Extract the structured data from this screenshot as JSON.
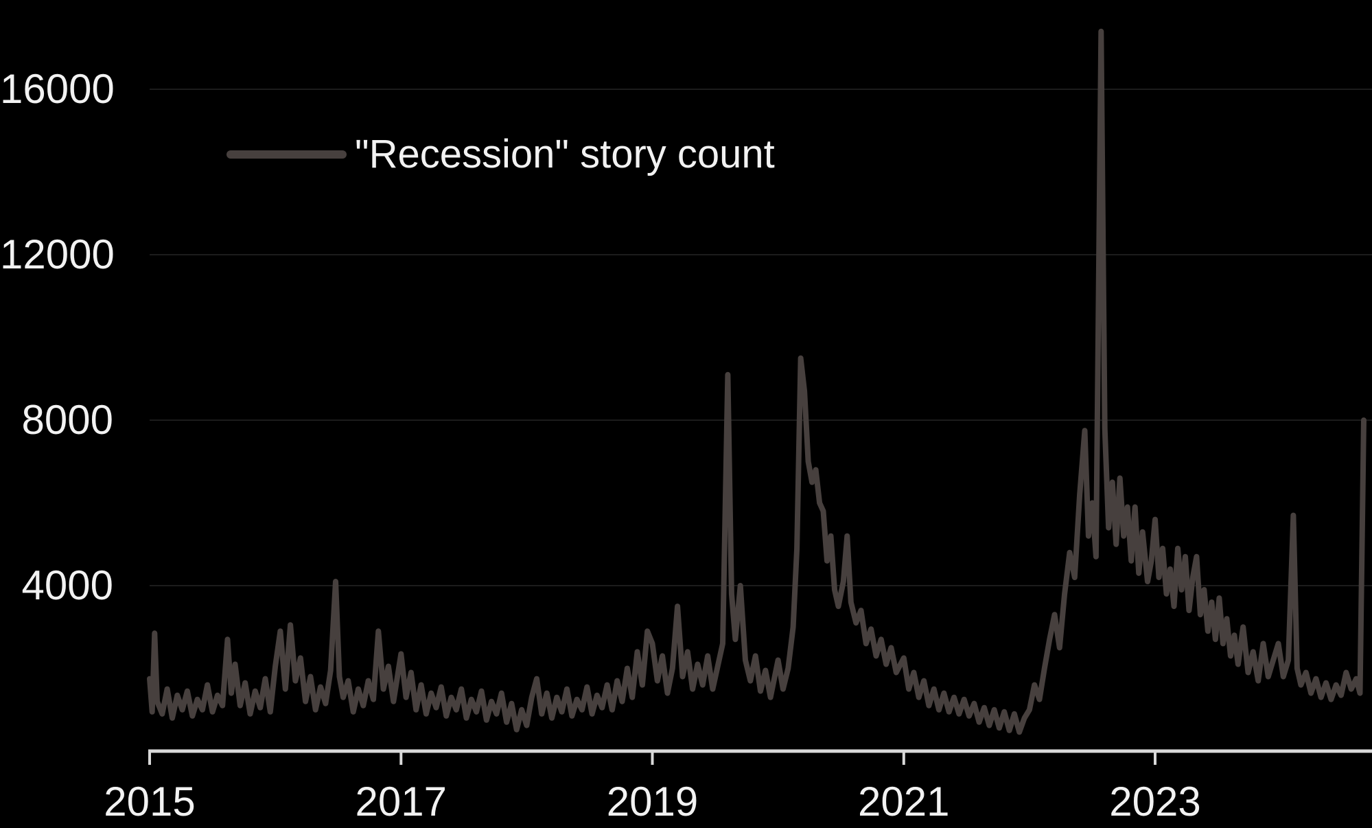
{
  "chart": {
    "legend_label": "\"Recession\" story count",
    "colors": {
      "background": "#000000",
      "series_line": "#47403e",
      "axis_line": "#d9d9d9",
      "gridline": "#1c1c1c",
      "label_text": "#f2f2f2"
    }
  },
  "chart_data": {
    "type": "line",
    "title": "",
    "xlabel": "",
    "ylabel": "",
    "legend": {
      "position": "top-left-inside",
      "entries": [
        "\"Recession\" story count"
      ]
    },
    "x_axis": {
      "unit": "year",
      "range": [
        2015,
        2024.73
      ],
      "ticks": [
        2015,
        2017,
        2019,
        2021,
        2023
      ],
      "tick_labels": [
        "2015",
        "2017",
        "2019",
        "2021",
        "2023"
      ]
    },
    "y_axis": {
      "range": [
        0,
        17600
      ],
      "ticks": [
        4000,
        8000,
        12000,
        16000
      ],
      "tick_labels": [
        "4000",
        "8000",
        "12000",
        "16000"
      ],
      "gridlines": true
    },
    "notable_peaks": [
      {
        "x": 2015.04,
        "y": 2850
      },
      {
        "x": 2016.12,
        "y": 3050
      },
      {
        "x": 2016.48,
        "y": 4100
      },
      {
        "x": 2018.96,
        "y": 2900
      },
      {
        "x": 2019.6,
        "y": 9100
      },
      {
        "x": 2020.18,
        "y": 9500
      },
      {
        "x": 2022.44,
        "y": 7750
      },
      {
        "x": 2022.57,
        "y": 17400
      },
      {
        "x": 2023.0,
        "y": 5600
      },
      {
        "x": 2024.1,
        "y": 5700
      },
      {
        "x": 2024.66,
        "y": 8000
      }
    ],
    "series": [
      {
        "name": "\"Recession\" story count",
        "color": "#47403e",
        "points": [
          [
            2015.0,
            1750
          ],
          [
            2015.02,
            950
          ],
          [
            2015.04,
            2850
          ],
          [
            2015.06,
            1200
          ],
          [
            2015.1,
            900
          ],
          [
            2015.14,
            1500
          ],
          [
            2015.18,
            800
          ],
          [
            2015.22,
            1350
          ],
          [
            2015.26,
            1000
          ],
          [
            2015.3,
            1450
          ],
          [
            2015.34,
            850
          ],
          [
            2015.38,
            1250
          ],
          [
            2015.42,
            1000
          ],
          [
            2015.46,
            1600
          ],
          [
            2015.5,
            950
          ],
          [
            2015.54,
            1350
          ],
          [
            2015.58,
            1100
          ],
          [
            2015.62,
            2700
          ],
          [
            2015.65,
            1400
          ],
          [
            2015.68,
            2100
          ],
          [
            2015.72,
            1100
          ],
          [
            2015.76,
            1650
          ],
          [
            2015.8,
            900
          ],
          [
            2015.84,
            1450
          ],
          [
            2015.88,
            1050
          ],
          [
            2015.92,
            1750
          ],
          [
            2015.96,
            950
          ],
          [
            2016.0,
            2050
          ],
          [
            2016.04,
            2900
          ],
          [
            2016.08,
            1500
          ],
          [
            2016.12,
            3050
          ],
          [
            2016.16,
            1700
          ],
          [
            2016.2,
            2250
          ],
          [
            2016.24,
            1200
          ],
          [
            2016.28,
            1800
          ],
          [
            2016.32,
            1000
          ],
          [
            2016.36,
            1550
          ],
          [
            2016.4,
            1150
          ],
          [
            2016.44,
            1950
          ],
          [
            2016.48,
            4100
          ],
          [
            2016.51,
            1800
          ],
          [
            2016.54,
            1300
          ],
          [
            2016.58,
            1700
          ],
          [
            2016.62,
            950
          ],
          [
            2016.66,
            1500
          ],
          [
            2016.7,
            1100
          ],
          [
            2016.74,
            1700
          ],
          [
            2016.78,
            1250
          ],
          [
            2016.82,
            2900
          ],
          [
            2016.86,
            1500
          ],
          [
            2016.9,
            2050
          ],
          [
            2016.94,
            1200
          ],
          [
            2017.0,
            2350
          ],
          [
            2017.04,
            1300
          ],
          [
            2017.08,
            1900
          ],
          [
            2017.12,
            1000
          ],
          [
            2017.16,
            1600
          ],
          [
            2017.2,
            900
          ],
          [
            2017.24,
            1400
          ],
          [
            2017.28,
            1050
          ],
          [
            2017.32,
            1550
          ],
          [
            2017.36,
            850
          ],
          [
            2017.4,
            1300
          ],
          [
            2017.44,
            1000
          ],
          [
            2017.48,
            1500
          ],
          [
            2017.52,
            800
          ],
          [
            2017.56,
            1250
          ],
          [
            2017.6,
            950
          ],
          [
            2017.64,
            1450
          ],
          [
            2017.68,
            750
          ],
          [
            2017.72,
            1200
          ],
          [
            2017.76,
            900
          ],
          [
            2017.8,
            1400
          ],
          [
            2017.84,
            700
          ],
          [
            2017.88,
            1150
          ],
          [
            2017.92,
            520
          ],
          [
            2017.96,
            1000
          ],
          [
            2018.0,
            620
          ],
          [
            2018.04,
            1300
          ],
          [
            2018.08,
            1750
          ],
          [
            2018.12,
            900
          ],
          [
            2018.16,
            1400
          ],
          [
            2018.2,
            800
          ],
          [
            2018.24,
            1300
          ],
          [
            2018.28,
            950
          ],
          [
            2018.32,
            1500
          ],
          [
            2018.36,
            850
          ],
          [
            2018.4,
            1250
          ],
          [
            2018.44,
            1000
          ],
          [
            2018.48,
            1550
          ],
          [
            2018.52,
            900
          ],
          [
            2018.56,
            1350
          ],
          [
            2018.6,
            1050
          ],
          [
            2018.64,
            1600
          ],
          [
            2018.68,
            1000
          ],
          [
            2018.72,
            1700
          ],
          [
            2018.76,
            1200
          ],
          [
            2018.8,
            2000
          ],
          [
            2018.84,
            1300
          ],
          [
            2018.88,
            2400
          ],
          [
            2018.92,
            1600
          ],
          [
            2018.96,
            2900
          ],
          [
            2019.0,
            2600
          ],
          [
            2019.04,
            1700
          ],
          [
            2019.08,
            2300
          ],
          [
            2019.12,
            1400
          ],
          [
            2019.16,
            2000
          ],
          [
            2019.2,
            3500
          ],
          [
            2019.24,
            1800
          ],
          [
            2019.28,
            2400
          ],
          [
            2019.32,
            1500
          ],
          [
            2019.36,
            2100
          ],
          [
            2019.4,
            1600
          ],
          [
            2019.44,
            2300
          ],
          [
            2019.48,
            1500
          ],
          [
            2019.52,
            2050
          ],
          [
            2019.56,
            2600
          ],
          [
            2019.6,
            9100
          ],
          [
            2019.63,
            3800
          ],
          [
            2019.66,
            2700
          ],
          [
            2019.7,
            4000
          ],
          [
            2019.74,
            2200
          ],
          [
            2019.78,
            1700
          ],
          [
            2019.82,
            2300
          ],
          [
            2019.86,
            1450
          ],
          [
            2019.9,
            1950
          ],
          [
            2019.94,
            1300
          ],
          [
            2020.0,
            2200
          ],
          [
            2020.04,
            1500
          ],
          [
            2020.08,
            2000
          ],
          [
            2020.12,
            3000
          ],
          [
            2020.15,
            4900
          ],
          [
            2020.18,
            9500
          ],
          [
            2020.21,
            8700
          ],
          [
            2020.24,
            7000
          ],
          [
            2020.27,
            6500
          ],
          [
            2020.3,
            6800
          ],
          [
            2020.33,
            6000
          ],
          [
            2020.36,
            5800
          ],
          [
            2020.39,
            4600
          ],
          [
            2020.42,
            5200
          ],
          [
            2020.45,
            3900
          ],
          [
            2020.48,
            3500
          ],
          [
            2020.52,
            4100
          ],
          [
            2020.55,
            5200
          ],
          [
            2020.58,
            3600
          ],
          [
            2020.62,
            3100
          ],
          [
            2020.66,
            3400
          ],
          [
            2020.7,
            2600
          ],
          [
            2020.74,
            2950
          ],
          [
            2020.78,
            2300
          ],
          [
            2020.82,
            2700
          ],
          [
            2020.86,
            2100
          ],
          [
            2020.9,
            2500
          ],
          [
            2020.94,
            1900
          ],
          [
            2021.0,
            2250
          ],
          [
            2021.04,
            1500
          ],
          [
            2021.08,
            1900
          ],
          [
            2021.12,
            1300
          ],
          [
            2021.16,
            1700
          ],
          [
            2021.2,
            1100
          ],
          [
            2021.24,
            1500
          ],
          [
            2021.28,
            1000
          ],
          [
            2021.32,
            1400
          ],
          [
            2021.36,
            950
          ],
          [
            2021.4,
            1300
          ],
          [
            2021.44,
            900
          ],
          [
            2021.48,
            1250
          ],
          [
            2021.52,
            850
          ],
          [
            2021.56,
            1150
          ],
          [
            2021.6,
            700
          ],
          [
            2021.64,
            1050
          ],
          [
            2021.68,
            620
          ],
          [
            2021.72,
            1000
          ],
          [
            2021.76,
            560
          ],
          [
            2021.8,
            950
          ],
          [
            2021.84,
            500
          ],
          [
            2021.88,
            900
          ],
          [
            2021.92,
            460
          ],
          [
            2021.96,
            800
          ],
          [
            2022.0,
            1000
          ],
          [
            2022.04,
            1600
          ],
          [
            2022.08,
            1250
          ],
          [
            2022.12,
            2000
          ],
          [
            2022.16,
            2700
          ],
          [
            2022.2,
            3300
          ],
          [
            2022.24,
            2500
          ],
          [
            2022.28,
            3800
          ],
          [
            2022.32,
            4800
          ],
          [
            2022.36,
            4200
          ],
          [
            2022.4,
            6200
          ],
          [
            2022.44,
            7750
          ],
          [
            2022.47,
            5200
          ],
          [
            2022.5,
            6000
          ],
          [
            2022.53,
            4700
          ],
          [
            2022.57,
            17400
          ],
          [
            2022.6,
            7800
          ],
          [
            2022.63,
            5400
          ],
          [
            2022.66,
            6500
          ],
          [
            2022.69,
            5000
          ],
          [
            2022.72,
            6600
          ],
          [
            2022.75,
            5200
          ],
          [
            2022.78,
            5900
          ],
          [
            2022.81,
            4600
          ],
          [
            2022.84,
            5900
          ],
          [
            2022.87,
            4300
          ],
          [
            2022.9,
            5300
          ],
          [
            2022.94,
            4100
          ],
          [
            2022.97,
            4600
          ],
          [
            2023.0,
            5600
          ],
          [
            2023.03,
            4200
          ],
          [
            2023.06,
            4900
          ],
          [
            2023.09,
            3800
          ],
          [
            2023.12,
            4400
          ],
          [
            2023.15,
            3500
          ],
          [
            2023.18,
            4900
          ],
          [
            2023.21,
            3900
          ],
          [
            2023.24,
            4700
          ],
          [
            2023.27,
            3400
          ],
          [
            2023.3,
            4200
          ],
          [
            2023.33,
            4700
          ],
          [
            2023.36,
            3300
          ],
          [
            2023.39,
            3900
          ],
          [
            2023.42,
            2900
          ],
          [
            2023.45,
            3600
          ],
          [
            2023.48,
            2700
          ],
          [
            2023.51,
            3700
          ],
          [
            2023.54,
            2600
          ],
          [
            2023.57,
            3200
          ],
          [
            2023.6,
            2300
          ],
          [
            2023.63,
            2800
          ],
          [
            2023.66,
            2100
          ],
          [
            2023.7,
            3000
          ],
          [
            2023.74,
            1900
          ],
          [
            2023.78,
            2400
          ],
          [
            2023.82,
            1700
          ],
          [
            2023.86,
            2600
          ],
          [
            2023.9,
            1800
          ],
          [
            2023.94,
            2200
          ],
          [
            2023.98,
            2600
          ],
          [
            2024.02,
            1800
          ],
          [
            2024.06,
            2200
          ],
          [
            2024.1,
            5700
          ],
          [
            2024.13,
            2000
          ],
          [
            2024.16,
            1600
          ],
          [
            2024.2,
            1900
          ],
          [
            2024.24,
            1400
          ],
          [
            2024.28,
            1750
          ],
          [
            2024.32,
            1300
          ],
          [
            2024.36,
            1650
          ],
          [
            2024.4,
            1250
          ],
          [
            2024.44,
            1600
          ],
          [
            2024.48,
            1350
          ],
          [
            2024.52,
            1900
          ],
          [
            2024.56,
            1500
          ],
          [
            2024.6,
            1750
          ],
          [
            2024.63,
            1400
          ],
          [
            2024.66,
            8000
          ]
        ]
      }
    ]
  }
}
